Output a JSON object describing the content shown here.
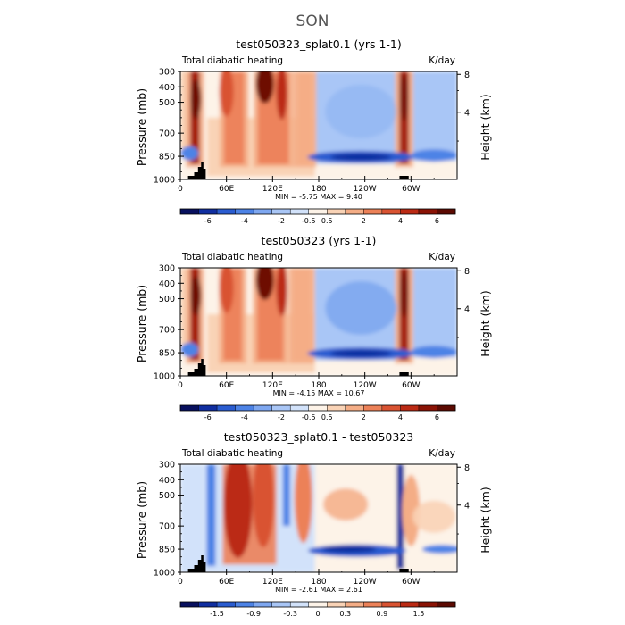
{
  "figure": {
    "title": "SON"
  },
  "chart_data": [
    {
      "type": "heatmap",
      "title": "test050323_splat0.1 (yrs 1-1)",
      "left_label": "Total diabatic heating",
      "units_label": "K/day",
      "ylabel": "Pressure (mb)",
      "ylabel_right": "Height (km)",
      "x_ticks": [
        "0",
        "60E",
        "120E",
        "180",
        "120W",
        "60W"
      ],
      "x_tick_lon": [
        0,
        60,
        120,
        180,
        240,
        300
      ],
      "xlim": [
        0,
        360
      ],
      "y_ticks": [
        "300",
        "400",
        "500",
        "700",
        "850",
        "1000"
      ],
      "y_tick_p": [
        300,
        400,
        500,
        700,
        850,
        1000
      ],
      "ylim": [
        1000,
        300
      ],
      "y_ticks_right": [
        "8",
        "4"
      ],
      "y_tick_km": [
        8,
        4
      ],
      "min_max_text": "MIN =   -5.75   MAX =    9.40",
      "min": -5.75,
      "max": 9.4,
      "colorbar": {
        "labels": [
          "-6",
          "-4",
          "-2",
          "-0.5",
          "0.5",
          "2",
          "4",
          "6"
        ],
        "colors": [
          "#08105e",
          "#102ea0",
          "#2a5cd0",
          "#4d83e6",
          "#7ea7f0",
          "#a9c6f6",
          "#d2e2fa",
          "#fdf3e8",
          "#f9d3b6",
          "#f4ad86",
          "#ec8158",
          "#d95332",
          "#bb2a14",
          "#8a1305",
          "#5c0a02"
        ]
      },
      "features": {
        "heating_columns_lon": [
          [
            10,
            30
          ],
          [
            50,
            90
          ],
          [
            95,
            150
          ],
          [
            148,
            175
          ],
          [
            285,
            298
          ]
        ],
        "low_level_cooling_lon": [
          [
            180,
            290
          ],
          [
            300,
            360
          ]
        ],
        "topography_lon": [
          [
            10,
            30
          ],
          [
            285,
            298
          ]
        ]
      }
    },
    {
      "type": "heatmap",
      "title": "test050323 (yrs 1-1)",
      "left_label": "Total diabatic heating",
      "units_label": "K/day",
      "ylabel": "Pressure (mb)",
      "ylabel_right": "Height (km)",
      "x_ticks": [
        "0",
        "60E",
        "120E",
        "180",
        "120W",
        "60W"
      ],
      "x_tick_lon": [
        0,
        60,
        120,
        180,
        240,
        300
      ],
      "xlim": [
        0,
        360
      ],
      "y_ticks": [
        "300",
        "400",
        "500",
        "700",
        "850",
        "1000"
      ],
      "y_tick_p": [
        300,
        400,
        500,
        700,
        850,
        1000
      ],
      "ylim": [
        1000,
        300
      ],
      "y_ticks_right": [
        "8",
        "4"
      ],
      "y_tick_km": [
        8,
        4
      ],
      "min_max_text": "MIN =   -4.15   MAX =   10.67",
      "min": -4.15,
      "max": 10.67,
      "colorbar": {
        "labels": [
          "-6",
          "-4",
          "-2",
          "-0.5",
          "0.5",
          "2",
          "4",
          "6"
        ],
        "colors": [
          "#08105e",
          "#102ea0",
          "#2a5cd0",
          "#4d83e6",
          "#7ea7f0",
          "#a9c6f6",
          "#d2e2fa",
          "#fdf3e8",
          "#f9d3b6",
          "#f4ad86",
          "#ec8158",
          "#d95332",
          "#bb2a14",
          "#8a1305",
          "#5c0a02"
        ]
      },
      "features": {
        "heating_columns_lon": [
          [
            10,
            30
          ],
          [
            50,
            85
          ],
          [
            95,
            140
          ],
          [
            140,
            175
          ],
          [
            285,
            298
          ]
        ],
        "low_level_cooling_lon": [
          [
            180,
            290
          ],
          [
            300,
            360
          ]
        ],
        "topography_lon": [
          [
            10,
            30
          ],
          [
            285,
            298
          ]
        ]
      }
    },
    {
      "type": "heatmap",
      "title": "test050323_splat0.1 - test050323",
      "left_label": "Total diabatic heating",
      "units_label": "K/day",
      "ylabel": "Pressure (mb)",
      "ylabel_right": "Height (km)",
      "x_ticks": [
        "0",
        "60E",
        "120E",
        "180",
        "120W",
        "60W"
      ],
      "x_tick_lon": [
        0,
        60,
        120,
        180,
        240,
        300
      ],
      "xlim": [
        0,
        360
      ],
      "y_ticks": [
        "300",
        "400",
        "500",
        "700",
        "850",
        "1000"
      ],
      "y_tick_p": [
        300,
        400,
        500,
        700,
        850,
        1000
      ],
      "ylim": [
        1000,
        300
      ],
      "y_ticks_right": [
        "8",
        "4"
      ],
      "y_tick_km": [
        8,
        4
      ],
      "min_max_text": "MIN =   -2.61   MAX =    2.61",
      "min": -2.61,
      "max": 2.61,
      "colorbar": {
        "labels": [
          "-1.5",
          "-0.9",
          "-0.3",
          "0",
          "0.3",
          "0.9",
          "1.5"
        ],
        "colors": [
          "#08105e",
          "#102ea0",
          "#2a5cd0",
          "#4d83e6",
          "#7ea7f0",
          "#a9c6f6",
          "#d2e2fa",
          "#fdf3e8",
          "#f9d3b6",
          "#f4ad86",
          "#ec8158",
          "#d95332",
          "#bb2a14",
          "#8a1305",
          "#5c0a02"
        ]
      },
      "features": {
        "heating_columns_lon": [
          [
            60,
            120
          ],
          [
            140,
            175
          ]
        ],
        "low_level_cooling_lon": [
          [
            175,
            290
          ]
        ],
        "topography_lon": [
          [
            10,
            30
          ],
          [
            285,
            298
          ]
        ]
      }
    }
  ]
}
